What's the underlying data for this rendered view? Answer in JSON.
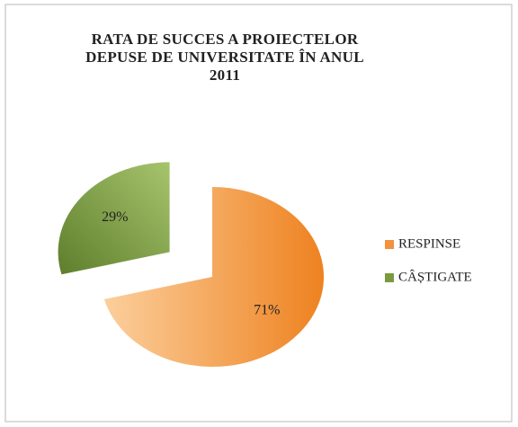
{
  "chart_data": {
    "type": "pie",
    "title": "RATA DE SUCCES A PROIECTELOR DEPUSE DE UNIVERSITATE ÎN ANUL 2011",
    "categories": [
      "RESPINSE",
      "CÂȘTIGATE"
    ],
    "values": [
      71,
      29
    ],
    "value_labels": [
      "71%",
      "29%"
    ],
    "colors": [
      "#f0923f",
      "#7a9a3e"
    ],
    "exploded": [
      false,
      true
    ],
    "legend": "right"
  }
}
